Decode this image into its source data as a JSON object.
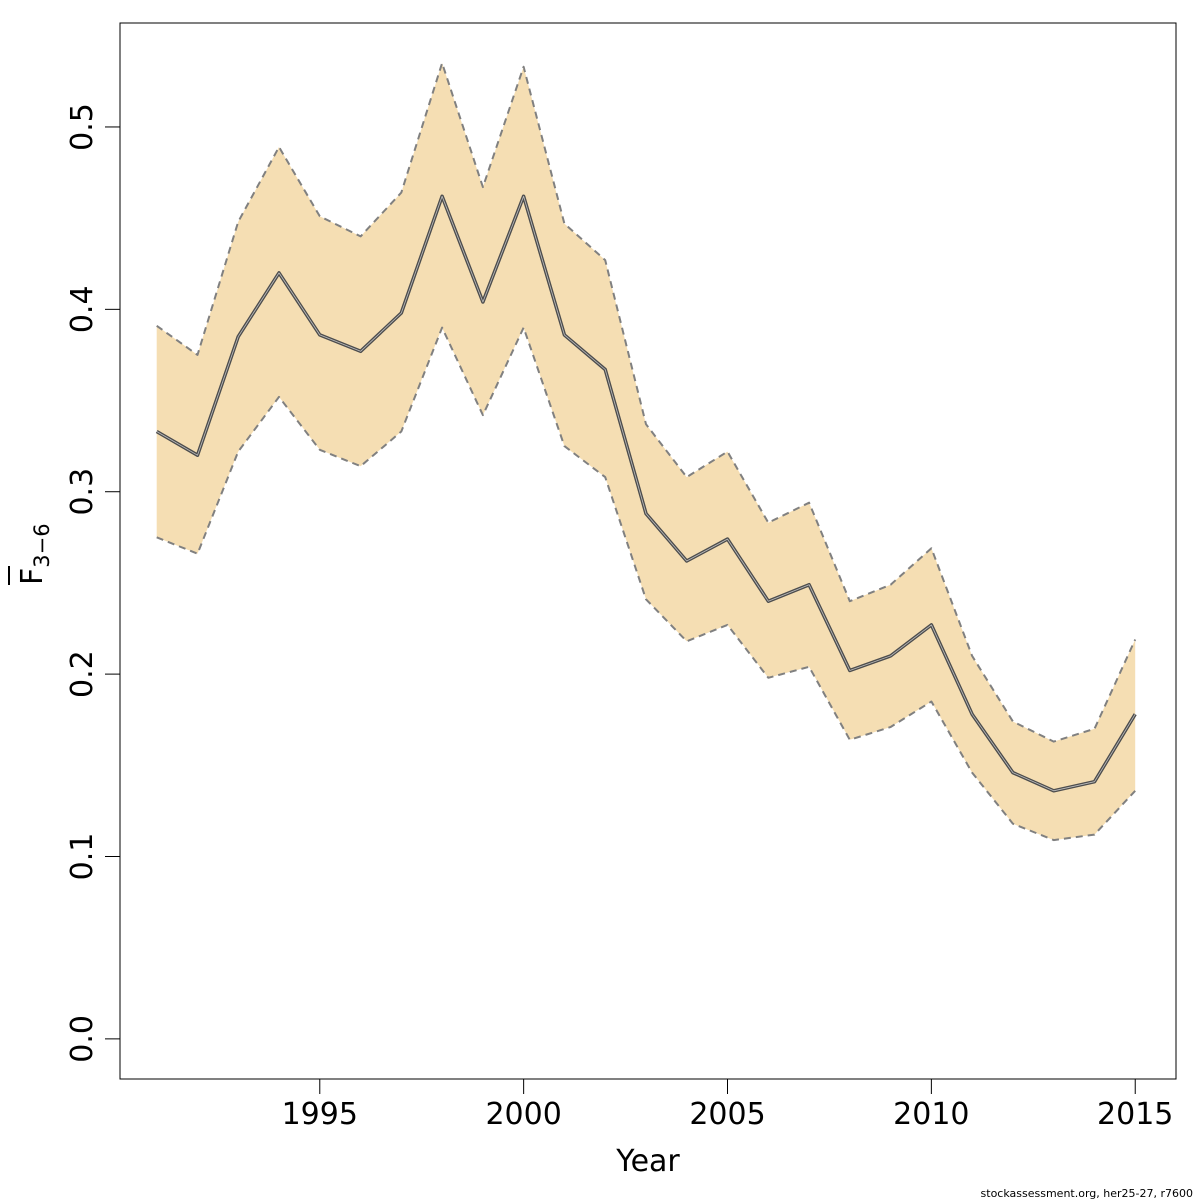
{
  "chart_data": {
    "type": "area",
    "title": "",
    "xlabel": "Year",
    "ylabel": {
      "main": "F",
      "subscript": "3−6"
    },
    "xlim": [
      1990.1,
      2016.0
    ],
    "ylim": [
      -0.022,
      0.557
    ],
    "x_ticks": [
      1995,
      2000,
      2005,
      2010,
      2015
    ],
    "y_ticks": [
      0.0,
      0.1,
      0.2,
      0.3,
      0.4,
      0.5
    ],
    "y_tick_labels": [
      "0.0",
      "0.1",
      "0.2",
      "0.3",
      "0.4",
      "0.5"
    ],
    "grid": false,
    "legend": "none",
    "colors": {
      "band_fill": "#F5DEB3",
      "band_edge": "#808080",
      "estimate_line": "#4d4d4d",
      "axis": "#000000"
    },
    "x": [
      1991,
      1992,
      1993,
      1994,
      1995,
      1996,
      1997,
      1998,
      1999,
      2000,
      2001,
      2002,
      2003,
      2004,
      2005,
      2006,
      2007,
      2008,
      2009,
      2010,
      2011,
      2012,
      2013,
      2014,
      2015
    ],
    "series": [
      {
        "role": "estimate",
        "values": [
          0.333,
          0.32,
          0.385,
          0.42,
          0.386,
          0.377,
          0.398,
          0.462,
          0.404,
          0.462,
          0.386,
          0.367,
          0.288,
          0.262,
          0.274,
          0.24,
          0.249,
          0.202,
          0.21,
          0.227,
          0.178,
          0.146,
          0.136,
          0.141,
          0.178
        ]
      },
      {
        "role": "upper",
        "values": [
          0.391,
          0.375,
          0.448,
          0.489,
          0.451,
          0.44,
          0.464,
          0.535,
          0.467,
          0.533,
          0.447,
          0.427,
          0.337,
          0.308,
          0.322,
          0.283,
          0.294,
          0.24,
          0.249,
          0.269,
          0.21,
          0.174,
          0.163,
          0.17,
          0.219
        ]
      },
      {
        "role": "lower",
        "values": [
          0.275,
          0.266,
          0.322,
          0.352,
          0.323,
          0.314,
          0.333,
          0.39,
          0.342,
          0.39,
          0.325,
          0.308,
          0.241,
          0.218,
          0.227,
          0.198,
          0.204,
          0.164,
          0.171,
          0.185,
          0.146,
          0.118,
          0.109,
          0.112,
          0.136
        ]
      }
    ]
  },
  "footer": {
    "credit": "stockassessment.org, her25-27, r7600"
  }
}
